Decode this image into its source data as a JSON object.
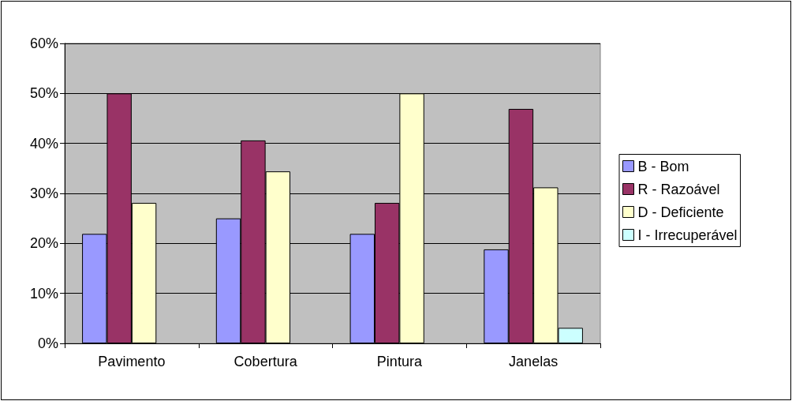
{
  "chart_data": {
    "type": "bar",
    "categories": [
      "Pavimento",
      "Cobertura",
      "Pintura",
      "Janelas"
    ],
    "series": [
      {
        "name": "B - Bom",
        "color": "#9999ff",
        "values": [
          21.9,
          25,
          21.9,
          18.8
        ]
      },
      {
        "name": "R - Razoável",
        "color": "#993366",
        "values": [
          50,
          40.6,
          28.1,
          46.9
        ]
      },
      {
        "name": "D - Deficiente",
        "color": "#ffffcc",
        "values": [
          28.1,
          34.4,
          50,
          31.2
        ]
      },
      {
        "name": "I - Irrecuperável",
        "color": "#ccffff",
        "values": [
          null,
          null,
          null,
          3.1
        ]
      }
    ],
    "ylim": [
      0,
      60
    ],
    "yticks": [
      {
        "value": 0,
        "label": "0%"
      },
      {
        "value": 10,
        "label": "10%"
      },
      {
        "value": 20,
        "label": "20%"
      },
      {
        "value": 30,
        "label": "30%"
      },
      {
        "value": 40,
        "label": "40%"
      },
      {
        "value": 50,
        "label": "50%"
      },
      {
        "value": 60,
        "label": "60%"
      }
    ],
    "grid": "y",
    "legend": "right"
  }
}
